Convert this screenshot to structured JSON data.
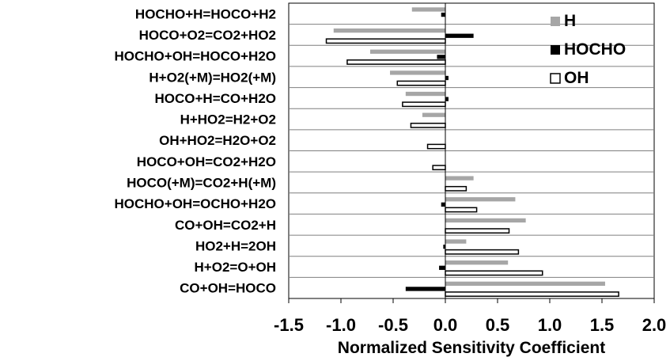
{
  "chart_data": {
    "type": "bar",
    "orientation": "horizontal",
    "categories": [
      "HOCHO+H=HOCO+H2",
      "HOCO+O2=CO2+HO2",
      "HOCHO+OH=HOCO+H2O",
      "H+O2(+M)=HO2(+M)",
      "HOCO+H=CO+H2O",
      "H+HO2=H2+O2",
      "OH+HO2=H2O+O2",
      "HOCO+OH=CO2+H2O",
      "HOCO(+M)=CO2+H(+M)",
      "HOCHO+OH=OCHO+H2O",
      "CO+OH=CO2+H",
      "HO2+H=2OH",
      "H+O2=O+OH",
      "CO+OH=HOCO"
    ],
    "series": [
      {
        "name": "H",
        "color": "#a6a6a6",
        "values": [
          -0.32,
          -1.07,
          -0.72,
          -0.53,
          -0.38,
          -0.22,
          0.0,
          0.0,
          0.27,
          0.67,
          0.77,
          0.2,
          0.6,
          1.53
        ]
      },
      {
        "name": "HOCHO",
        "color": "#000000",
        "values": [
          -0.04,
          0.27,
          -0.08,
          0.03,
          0.03,
          0.0,
          0.0,
          0.0,
          0.0,
          -0.04,
          0.0,
          -0.02,
          -0.06,
          -0.38
        ]
      },
      {
        "name": "OH",
        "color": "#ffffff",
        "values": [
          0.0,
          -1.14,
          -0.94,
          -0.46,
          -0.41,
          -0.33,
          -0.17,
          -0.12,
          0.2,
          0.3,
          0.61,
          0.7,
          0.93,
          1.66
        ]
      }
    ],
    "xlim": [
      -1.5,
      2.0
    ],
    "xticks": [
      "-1.5",
      "-1.0",
      "-0.5",
      "0.0",
      "0.5",
      "1.0",
      "1.5",
      "2.0"
    ],
    "xlabel": "Normalized Sensitivity Coefficient",
    "legend_position": "top-right",
    "grid": "horizontal category separators"
  }
}
